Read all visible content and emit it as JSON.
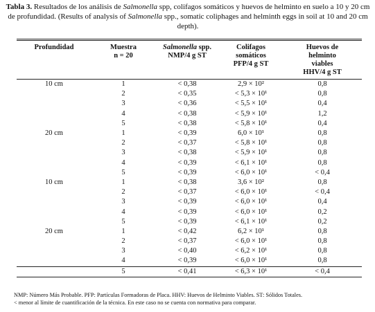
{
  "caption": {
    "label": "Tabla 3.",
    "parts": [
      "Resultados de los análisis de",
      "Salmonella",
      "spp, colifagos somáticos y huevos de helminto en suelo a 10 y 20 cm de profundidad. (Results of analysis of",
      "Salmonella",
      "spp., somatic coliphages and helminth eggs in soil at 10 and 20 cm depth)."
    ]
  },
  "table": {
    "headers": [
      [
        "Profundidad"
      ],
      [
        "Muestra",
        "n = 20"
      ],
      [
        "Salmonella",
        "spp.",
        "NMP/4 g ST"
      ],
      [
        "Colifagos",
        "somáticos",
        "PFP/4 g ST"
      ],
      [
        "Huevos de",
        "helminto",
        "viables",
        "HHV/4 g ST"
      ]
    ],
    "groups": [
      {
        "depth": "10 cm",
        "rows": [
          [
            "1",
            "< 0,38",
            "2,9 × 10²",
            "0,8"
          ],
          [
            "2",
            "< 0,35",
            "< 5,3 × 10¹",
            "0,8"
          ],
          [
            "3",
            "< 0,36",
            "< 5,5 × 10¹",
            "0,4"
          ],
          [
            "4",
            "< 0,38",
            "< 5,9 × 10¹",
            "1,2"
          ],
          [
            "5",
            "< 0,38",
            "< 5,8 × 10¹",
            "0,4"
          ]
        ]
      },
      {
        "depth": "20 cm",
        "rows": [
          [
            "1",
            "< 0,39",
            "6,0 × 10¹",
            "0,8"
          ],
          [
            "2",
            "< 0,37",
            "< 5,8 × 10¹",
            "0,8"
          ],
          [
            "3",
            "< 0,38",
            "< 5,9 × 10¹",
            "0,8"
          ],
          [
            "4",
            "< 0,39",
            "< 6,1 × 10¹",
            "0,8"
          ],
          [
            "5",
            "< 0,39",
            "< 6,0 × 10¹",
            "< 0,4"
          ]
        ]
      },
      {
        "depth": "10 cm",
        "rows": [
          [
            "1",
            "< 0,38",
            "3,6 × 10²",
            "0,8"
          ],
          [
            "2",
            "< 0,37",
            "< 6,0 × 10¹",
            "< 0,4"
          ],
          [
            "3",
            "< 0,39",
            "< 6,0 × 10¹",
            "0,4"
          ],
          [
            "4",
            "< 0,39",
            "< 6,0 × 10¹",
            "0,2"
          ],
          [
            "5",
            "< 0,39",
            "< 6,1 × 10¹",
            "0,2"
          ]
        ]
      },
      {
        "depth": "20 cm",
        "rows": [
          [
            "1",
            "< 0,42",
            "6,2 × 10¹",
            "0,8"
          ],
          [
            "2",
            "< 0,37",
            "< 6,0 × 10¹",
            "0,8"
          ],
          [
            "3",
            "< 0,40",
            "< 6,2 × 10¹",
            "0,8"
          ],
          [
            "4",
            "< 0,39",
            "< 6,0 × 10¹",
            "0,8"
          ],
          [
            "5",
            "< 0,41",
            "< 6,3 × 10¹",
            "< 0,4"
          ]
        ]
      }
    ]
  },
  "footnotes": [
    "NMP: Número Más Probable. PFP: Partículas Formadoras de Placa. HHV: Huevos de Helminto Viables. ST: Sólidos Totales.",
    "< menor al límite de cuantificación de la técnica. En este caso no se cuenta con normativa para comparar."
  ]
}
